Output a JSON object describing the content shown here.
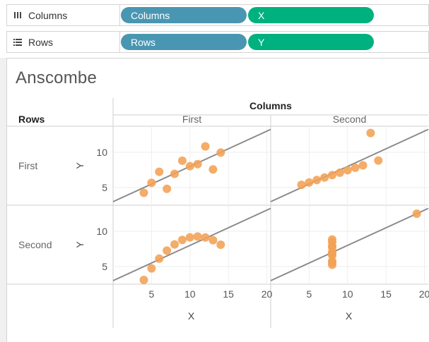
{
  "shelves": {
    "columns": {
      "label": "Columns",
      "icon": "columns-icon",
      "pills": [
        {
          "label": "Columns",
          "kind": "dimension"
        },
        {
          "label": "X",
          "kind": "measure"
        }
      ]
    },
    "rows": {
      "label": "Rows",
      "icon": "rows-icon",
      "pills": [
        {
          "label": "Rows",
          "kind": "dimension"
        },
        {
          "label": "Y",
          "kind": "measure"
        }
      ]
    }
  },
  "colors": {
    "dimension_pill": "#4996b2",
    "measure_pill": "#00b180",
    "marks": "#f2a154",
    "trend_line": "#8a8a8a"
  },
  "chart_data": {
    "type": "scatter",
    "title": "Anscombe",
    "column_header": "Columns",
    "row_header": "Rows",
    "columns": [
      "First",
      "Second"
    ],
    "rows": [
      "First",
      "Second"
    ],
    "xlabel": "X",
    "ylabel": "Y",
    "xlim": [
      0,
      20.5
    ],
    "ylim": [
      2.5,
      13.7
    ],
    "x_ticks": [
      5,
      10,
      15,
      20
    ],
    "y_ticks": [
      5,
      10
    ],
    "grid": true,
    "trend_line": {
      "slope": 0.5,
      "intercept": 3.0
    },
    "panels": [
      {
        "row": "First",
        "column": "First",
        "points": [
          [
            10,
            8.04
          ],
          [
            8,
            6.95
          ],
          [
            13,
            7.58
          ],
          [
            9,
            8.81
          ],
          [
            11,
            8.33
          ],
          [
            14,
            9.96
          ],
          [
            6,
            7.24
          ],
          [
            4,
            4.26
          ],
          [
            12,
            10.84
          ],
          [
            7,
            4.82
          ],
          [
            5,
            5.68
          ]
        ]
      },
      {
        "row": "First",
        "column": "Second",
        "points": [
          [
            10,
            7.46
          ],
          [
            8,
            6.77
          ],
          [
            13,
            12.74
          ],
          [
            9,
            7.11
          ],
          [
            11,
            7.81
          ],
          [
            14,
            8.84
          ],
          [
            6,
            6.08
          ],
          [
            4,
            5.39
          ],
          [
            12,
            8.15
          ],
          [
            7,
            6.42
          ],
          [
            5,
            5.73
          ]
        ]
      },
      {
        "row": "Second",
        "column": "First",
        "points": [
          [
            10,
            9.14
          ],
          [
            8,
            8.14
          ],
          [
            13,
            8.74
          ],
          [
            9,
            8.77
          ],
          [
            11,
            9.26
          ],
          [
            14,
            8.1
          ],
          [
            6,
            6.13
          ],
          [
            4,
            3.1
          ],
          [
            12,
            9.13
          ],
          [
            7,
            7.26
          ],
          [
            5,
            4.74
          ]
        ]
      },
      {
        "row": "Second",
        "column": "Second",
        "points": [
          [
            8,
            6.58
          ],
          [
            8,
            5.76
          ],
          [
            8,
            7.71
          ],
          [
            8,
            8.84
          ],
          [
            8,
            8.47
          ],
          [
            8,
            7.04
          ],
          [
            8,
            5.25
          ],
          [
            19,
            12.5
          ],
          [
            8,
            5.56
          ],
          [
            8,
            7.91
          ],
          [
            8,
            6.89
          ]
        ]
      }
    ]
  }
}
